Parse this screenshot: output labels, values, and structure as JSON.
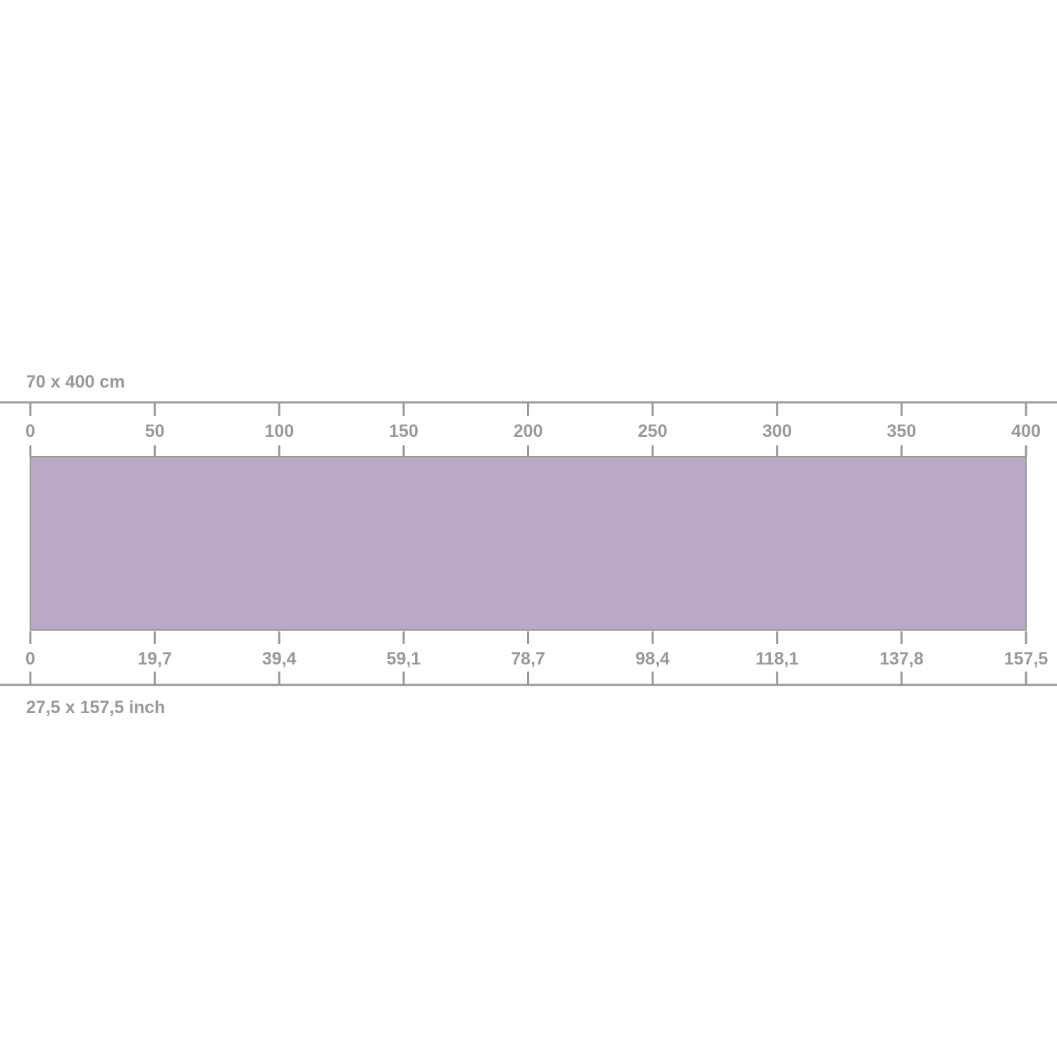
{
  "top_dimension_label": "70 x 400 cm",
  "bottom_dimension_label": "27,5 x 157,5 inch",
  "top_scale": {
    "unit": "cm",
    "ticks": [
      "0",
      "50",
      "100",
      "150",
      "200",
      "250",
      "300",
      "350",
      "400"
    ],
    "range": [
      0,
      400
    ]
  },
  "bottom_scale": {
    "unit": "inch",
    "ticks": [
      "0",
      "19,7",
      "39,4",
      "59,1",
      "78,7",
      "98,4",
      "118,1",
      "137,8",
      "157,5"
    ],
    "range": [
      0,
      157.5
    ]
  },
  "product": {
    "width_cm": 70,
    "length_cm": 400,
    "width_inch": 27.5,
    "length_inch": 157.5
  },
  "colors": {
    "product_fill": "#baa8c5",
    "line": "#999999",
    "text": "#999999"
  }
}
